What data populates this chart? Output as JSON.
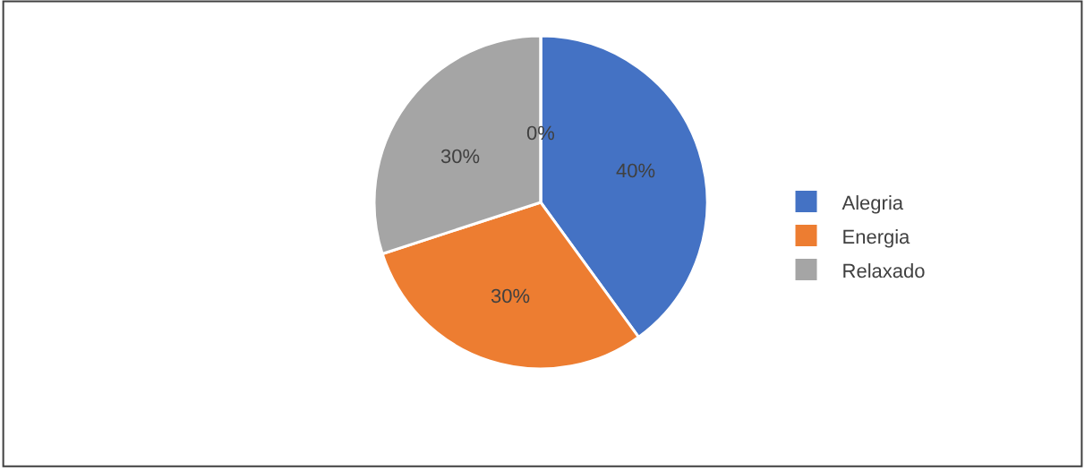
{
  "chart_data": {
    "type": "pie",
    "categories": [
      "Alegria",
      "Energia",
      "Relaxado",
      null
    ],
    "values": [
      40,
      30,
      30,
      0
    ],
    "colors": [
      "#4472c4",
      "#ed7d31",
      "#a5a5a5",
      "#ffc000"
    ],
    "value_labels": [
      "40%",
      "30%",
      "30%",
      "0%"
    ],
    "legend": "right"
  }
}
